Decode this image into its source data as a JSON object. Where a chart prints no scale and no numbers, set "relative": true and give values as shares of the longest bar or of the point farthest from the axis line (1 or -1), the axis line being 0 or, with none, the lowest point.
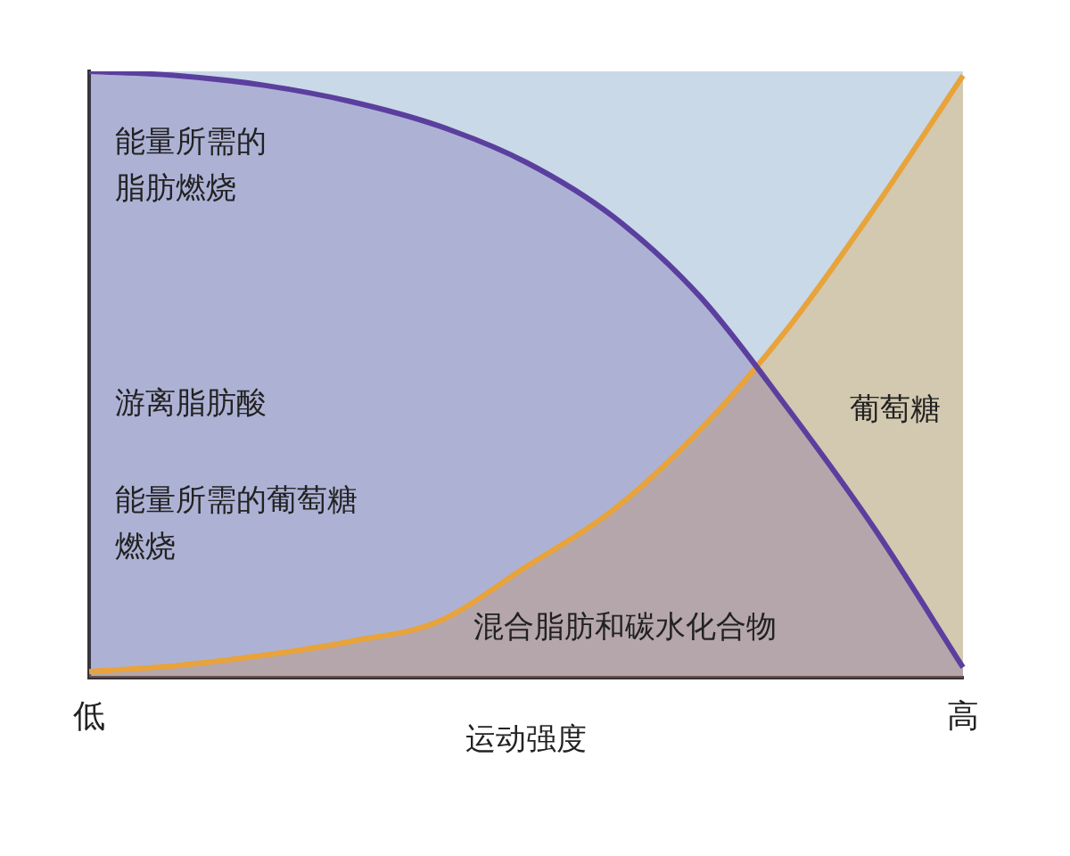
{
  "chart_data": {
    "type": "area",
    "relative": true,
    "xlabel": "运动强度",
    "categories": [
      "低",
      null,
      null,
      null,
      null,
      null,
      null,
      null,
      null,
      null,
      "高"
    ],
    "series": [
      {
        "color": "#5b3f9e",
        "values": [
          1,
          0.993,
          0.977,
          0.95,
          0.91,
          0.85,
          0.76,
          0.627,
          0.443,
          0.243,
          0.017
        ]
      },
      {
        "color": "#e8a33a",
        "values": [
          0.01,
          0.02,
          0.037,
          0.06,
          0.093,
          0.183,
          0.277,
          0.41,
          0.577,
          0.777,
          0.993
        ]
      }
    ],
    "annotations": [
      "能量所需的脂肪燃烧",
      "游离脂肪酸",
      "能量所需的葡萄糖燃烧",
      "葡萄糖",
      "混合脂肪和碳水化合物"
    ],
    "tick_labels": "x",
    "grid": false,
    "legend": false,
    "marker": "none",
    "line_style": "solid"
  }
}
